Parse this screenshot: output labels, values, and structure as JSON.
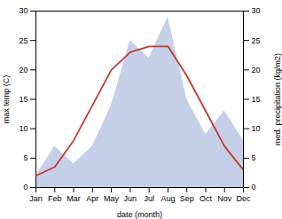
{
  "chart_data": {
    "type": "line",
    "categories": [
      "Jan",
      "Feb",
      "Mar",
      "Apr",
      "May",
      "Jun",
      "Jul",
      "Aug",
      "Sep",
      "Oct",
      "Nov",
      "Dec"
    ],
    "series": [
      {
        "type": "area",
        "axis": "y2",
        "color": "#c5cfe8",
        "values": [
          2,
          7,
          4,
          7,
          14,
          25,
          22,
          29,
          15,
          9,
          13,
          8
        ]
      },
      {
        "type": "line",
        "color": "#c0392b",
        "values": [
          2,
          3.5,
          8,
          14,
          20,
          23,
          24,
          24,
          19,
          13,
          7,
          3
        ]
      }
    ],
    "xlabel": "date (month)",
    "ylabel": "max temp (C)",
    "y2label": "med. precipitation (kg/m2)",
    "ylim": [
      0,
      30
    ],
    "yticks": [
      0,
      5,
      10,
      15,
      20,
      25,
      30
    ],
    "y2lim": [
      0,
      30
    ],
    "y2ticks": [
      0,
      5,
      10,
      15,
      20,
      25,
      30
    ],
    "grid": false
  }
}
